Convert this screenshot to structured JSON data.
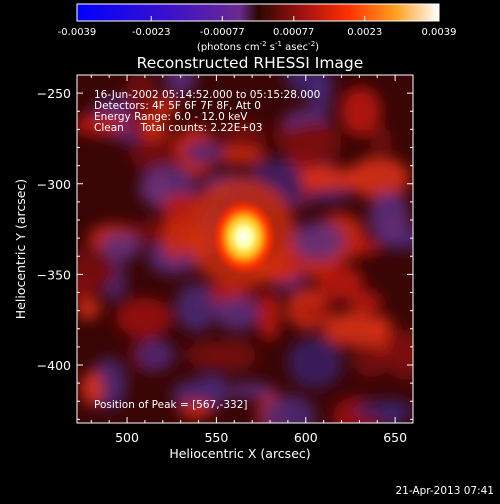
{
  "chart_data": {
    "type": "heatmap",
    "title": "Reconstructed RHESSI Image",
    "xlabel": "Heliocentric X (arcsec)",
    "ylabel": "Heliocentric Y (arcsec)",
    "xlim": [
      472,
      660
    ],
    "ylim": [
      -432,
      -240
    ],
    "x_ticks": [
      500,
      550,
      600,
      650
    ],
    "y_ticks": [
      -250,
      -300,
      -350,
      -400
    ],
    "colorbar": {
      "label_prefix": "(photons cm",
      "label_exp1": "-2",
      "label_mid": " s",
      "label_exp2": "-1",
      "label_mid2": " asec",
      "label_exp3": "-2",
      "label_suffix": ")",
      "range": [
        -0.0039,
        0.0039
      ],
      "tick_values": [
        -0.0039,
        -0.0023,
        -0.00077,
        0.00077,
        0.0023,
        0.0039
      ],
      "tick_labels": [
        "-0.0039",
        "-0.0023",
        "-0.00077",
        "0.00077",
        "0.0023",
        "0.0039"
      ]
    },
    "info_lines": [
      "16-Jun-2002 05:14:52.000 to 05:15:28.000",
      "Detectors: 4F 5F 6F 7F 8F, Att 0",
      "Energy Range: 6.0 - 12.0 keV",
      "Clean     Total counts: 2.22E+03"
    ],
    "peak_label": "Position of Peak = [567,-332]",
    "peak": {
      "x": 567,
      "y": -332
    },
    "timestamp": "21-Apr-2013 07:41"
  }
}
